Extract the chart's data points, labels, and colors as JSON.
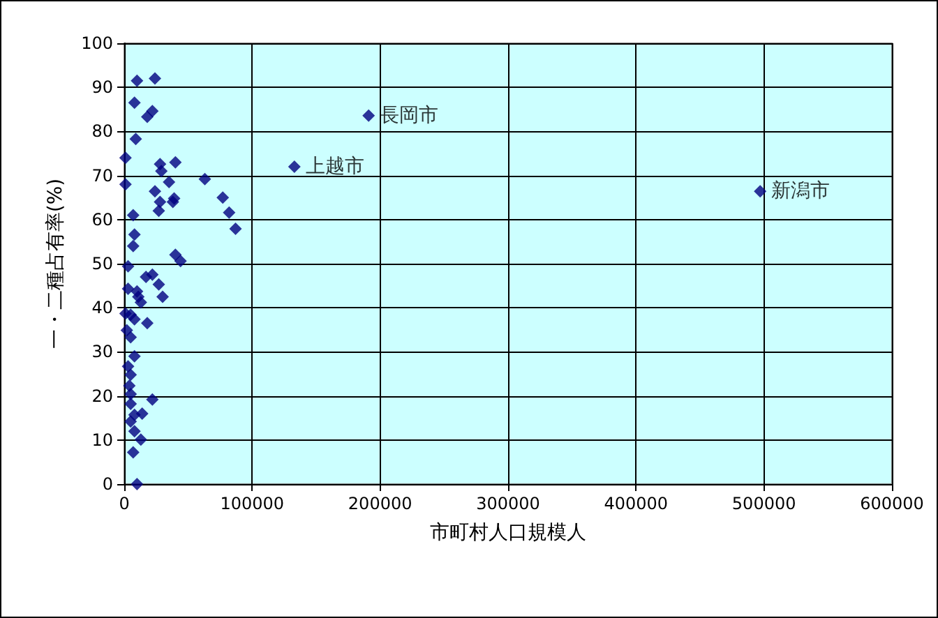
{
  "chart_data": {
    "type": "scatter",
    "xlabel": "市町村人口規模人",
    "ylabel": "一・二種占有率(%)",
    "xlim": [
      0,
      600000
    ],
    "xticks": [
      0,
      100000,
      200000,
      300000,
      400000,
      500000,
      600000
    ],
    "ylim": [
      0,
      100
    ],
    "yticks": [
      0,
      10,
      20,
      30,
      40,
      50,
      60,
      70,
      80,
      90,
      100
    ],
    "grid": true,
    "marker": "diamond",
    "series": [
      {
        "color": "#000080",
        "x": [
          10000,
          24000,
          8000,
          18000,
          22000,
          9000,
          1000,
          28000,
          40000,
          29000,
          35000,
          1000,
          24000,
          28000,
          38000,
          39000,
          27000,
          7000,
          8000,
          7000,
          40000,
          44000,
          3000,
          17000,
          22000,
          27000,
          30000,
          3000,
          10000,
          11000,
          13000,
          1000,
          5000,
          8000,
          18000,
          2000,
          5000,
          8000,
          3000,
          5000,
          4000,
          5000,
          22000,
          5000,
          14000,
          8000,
          5000,
          8000,
          13000,
          7000,
          10000,
          63000,
          77000,
          82000,
          87000,
          133000,
          191000,
          497000
        ],
        "values": [
          91.5,
          92,
          86.5,
          83.3,
          84.6,
          78.3,
          74,
          72.6,
          73,
          71,
          68.5,
          68,
          66.4,
          64,
          64,
          64.8,
          62,
          61,
          56.6,
          54,
          52,
          50.6,
          49.4,
          47,
          47.5,
          45.3,
          42.5,
          44.3,
          43.7,
          42.5,
          41.2,
          38.7,
          38.4,
          37.4,
          36.5,
          34.9,
          33.3,
          29,
          26.7,
          24.8,
          22.3,
          20.4,
          19.2,
          18.2,
          16,
          15.7,
          14.2,
          12,
          10.1,
          7.2,
          0,
          69.2,
          65,
          61.6,
          57.9,
          72,
          83.6,
          66.4
        ]
      }
    ],
    "annotations": [
      {
        "text": "長岡市",
        "x": 191000,
        "y": 83.6
      },
      {
        "text": "上越市",
        "x": 133000,
        "y": 72
      },
      {
        "text": "新潟市",
        "x": 497000,
        "y": 66.4
      }
    ]
  }
}
